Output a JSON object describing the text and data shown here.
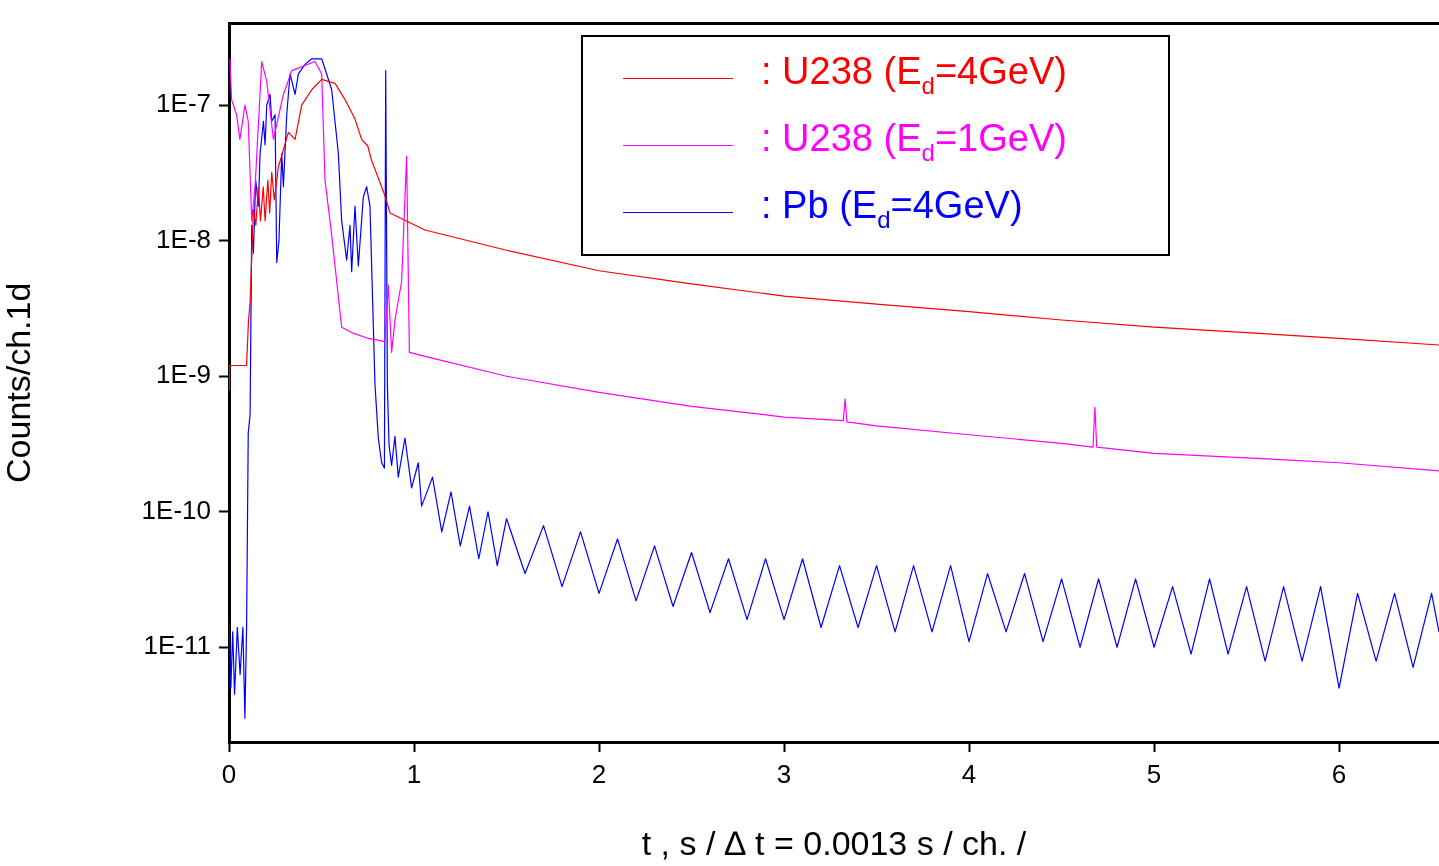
{
  "chart_data": {
    "type": "line",
    "xlabel": "t , s / ∆ t = 0.0013 s / ch. /",
    "ylabel": "Counts/ch.1d",
    "log": "y",
    "xlim": [
      0,
      6.54
    ],
    "ylim": [
      2e-12,
      4e-07
    ],
    "xticks": [
      0,
      1,
      2,
      3,
      4,
      5,
      6
    ],
    "yticks": [
      {
        "value": 1e-11,
        "label": "1E-11"
      },
      {
        "value": 1e-10,
        "label": "1E-10"
      },
      {
        "value": 1e-09,
        "label": "1E-9"
      },
      {
        "value": 1e-08,
        "label": "1E-8"
      },
      {
        "value": 1e-07,
        "label": "1E-7"
      }
    ],
    "grid": false,
    "legend": "top right",
    "marker": "none",
    "line_style": "solid",
    "series": [
      {
        "name": ": U238 (E$_{d}$=4GeV)",
        "color": "#ff0000",
        "x": [
          0,
          0.003,
          0.095,
          0.105,
          0.114,
          0.132,
          0.145,
          0.159,
          0.17,
          0.185,
          0.195,
          0.21,
          0.22,
          0.231,
          0.245,
          0.267,
          0.3,
          0.321,
          0.357,
          0.393,
          0.447,
          0.501,
          0.573,
          0.627,
          0.681,
          0.717,
          0.75,
          0.771,
          0.807,
          0.84,
          0.86,
          0.87,
          1.059,
          1.5,
          2,
          2.5,
          3,
          3.5,
          4,
          4.5,
          5,
          5.5,
          6,
          6.54
        ],
        "values": [
          7.9e-10,
          1.2e-09,
          1.2e-09,
          2.5e-09,
          3.5e-09,
          1.7e-08,
          1.3e-08,
          2.5e-08,
          1.4e-08,
          2.5e-08,
          1.4e-08,
          2.8e-08,
          1.6e-08,
          3.2e-08,
          2e-08,
          3.5e-08,
          5e-08,
          6.3e-08,
          5.6e-08,
          1e-07,
          1.3e-07,
          1.55e-07,
          1.45e-07,
          1.1e-07,
          7.9e-08,
          5.6e-08,
          5e-08,
          3.9e-08,
          2.9e-08,
          2.2e-08,
          1.8e-08,
          1.6e-08,
          1.2e-08,
          8.5e-09,
          6e-09,
          4.8e-09,
          3.9e-09,
          3.4e-09,
          3e-09,
          2.6e-09,
          2.3e-09,
          2.1e-09,
          1.9e-09,
          1.7e-09
        ]
      },
      {
        "name": ": U238 (E$_{d}$=1GeV)",
        "color": "#ff00ff",
        "x": [
          0.005,
          0.014,
          0.041,
          0.059,
          0.086,
          0.104,
          0.123,
          0.141,
          0.177,
          0.204,
          0.24,
          0.294,
          0.339,
          0.465,
          0.501,
          0.519,
          0.555,
          0.609,
          0.663,
          0.753,
          0.843,
          0.861,
          0.879,
          0.897,
          0.933,
          0.96,
          0.975,
          1.059,
          1.5,
          2,
          2.5,
          3,
          3.32,
          3.33,
          3.34,
          3.5,
          4,
          4.5,
          4.67,
          4.68,
          4.69,
          5,
          5.5,
          6,
          6.54
        ],
        "values": [
          2.2e-07,
          1.1e-07,
          8.5e-08,
          5.6e-08,
          1e-07,
          7.6e-08,
          1.4e-08,
          2.5e-08,
          2.1e-07,
          1.5e-07,
          5.6e-08,
          1.2e-07,
          1.8e-07,
          2.1e-07,
          1.7e-07,
          2.8e-08,
          1.1e-08,
          2.3e-09,
          2.1e-09,
          1.9e-09,
          1.8e-09,
          4.7e-09,
          1.5e-09,
          2.6e-09,
          5e-09,
          4.2e-08,
          1.5e-09,
          1.4e-09,
          1e-09,
          7.6e-10,
          6e-10,
          5e-10,
          4.7e-10,
          6.8e-10,
          4.6e-10,
          4.3e-10,
          3.7e-10,
          3.2e-10,
          3e-10,
          5.9e-10,
          3e-10,
          2.7e-10,
          2.5e-10,
          2.3e-10,
          2e-10
        ]
      },
      {
        "name": ": Pb (E$_{d}$=4GeV)",
        "color": "#0000ff",
        "x": [
          0,
          0.01,
          0.02,
          0.03,
          0.045,
          0.06,
          0.075,
          0.086,
          0.095,
          0.104,
          0.114,
          0.123,
          0.132,
          0.144,
          0.159,
          0.168,
          0.186,
          0.195,
          0.204,
          0.222,
          0.231,
          0.249,
          0.258,
          0.27,
          0.285,
          0.294,
          0.312,
          0.33,
          0.357,
          0.375,
          0.411,
          0.447,
          0.501,
          0.528,
          0.555,
          0.591,
          0.609,
          0.636,
          0.654,
          0.663,
          0.681,
          0.699,
          0.726,
          0.744,
          0.762,
          0.789,
          0.807,
          0.825,
          0.84,
          0.847,
          0.856,
          0.865,
          0.879,
          0.897,
          0.915,
          0.951,
          0.987,
          1.023,
          1.041,
          1.1,
          1.15,
          1.2,
          1.25,
          1.3,
          1.35,
          1.4,
          1.45,
          1.5,
          1.6,
          1.7,
          1.8,
          1.9,
          2.0,
          2.1,
          2.2,
          2.3,
          2.4,
          2.5,
          2.6,
          2.7,
          2.8,
          2.9,
          3.0,
          3.1,
          3.2,
          3.3,
          3.4,
          3.5,
          3.6,
          3.7,
          3.8,
          3.9,
          4.0,
          4.1,
          4.2,
          4.3,
          4.4,
          4.5,
          4.6,
          4.7,
          4.8,
          4.9,
          5.0,
          5.1,
          5.2,
          5.3,
          5.4,
          5.5,
          5.6,
          5.7,
          5.8,
          5.9,
          6.0,
          6.1,
          6.2,
          6.3,
          6.4,
          6.5,
          6.54
        ],
        "values": [
          1.6e-11,
          5e-12,
          1.3e-11,
          4.5e-12,
          1.4e-11,
          6.3e-12,
          1.4e-11,
          3e-12,
          1.4e-11,
          3.8e-10,
          5.2e-10,
          1.3e-08,
          8.1e-09,
          2.8e-08,
          1.8e-08,
          4.4e-08,
          7.6e-08,
          5.1e-08,
          1e-07,
          1.2e-07,
          7.6e-08,
          8.5e-08,
          6.9e-09,
          1e-08,
          4.4e-08,
          2.5e-08,
          8.5e-08,
          1.7e-07,
          1.2e-07,
          1.7e-07,
          2e-07,
          2.2e-07,
          2.2e-07,
          1.7e-07,
          1.3e-07,
          4.4e-08,
          1.4e-08,
          7.2e-09,
          1.3e-08,
          5.9e-09,
          1.8e-08,
          6.5e-09,
          2.1e-08,
          2.5e-08,
          1.8e-08,
          8.7e-10,
          3.5e-10,
          2.3e-10,
          2.1e-10,
          1.8e-07,
          8.7e-10,
          3.1e-10,
          2.2e-10,
          3.6e-10,
          1.8e-10,
          3.5e-10,
          1.5e-10,
          2.3e-10,
          1.1e-10,
          1.8e-10,
          7.1e-11,
          1.4e-10,
          5.6e-11,
          1.1e-10,
          4.5e-11,
          1e-10,
          4e-11,
          8.9e-11,
          3.5e-11,
          7.9e-11,
          2.8e-11,
          7.1e-11,
          2.5e-11,
          6.3e-11,
          2.2e-11,
          5.6e-11,
          2e-11,
          5e-11,
          1.8e-11,
          4.5e-11,
          1.6e-11,
          4.5e-11,
          1.6e-11,
          4.5e-11,
          1.4e-11,
          4e-11,
          1.4e-11,
          4e-11,
          1.3e-11,
          4e-11,
          1.3e-11,
          4e-11,
          1.1e-11,
          3.5e-11,
          1.3e-11,
          3.5e-11,
          1.1e-11,
          3.2e-11,
          1e-11,
          3.2e-11,
          1e-11,
          3.2e-11,
          1e-11,
          2.8e-11,
          8.9e-12,
          3.2e-11,
          8.9e-12,
          2.8e-11,
          7.9e-12,
          2.8e-11,
          7.9e-12,
          2.8e-11,
          5e-12,
          2.5e-11,
          7.9e-12,
          2.5e-11,
          7.1e-12,
          2.5e-11,
          1.3e-11
        ]
      }
    ]
  }
}
